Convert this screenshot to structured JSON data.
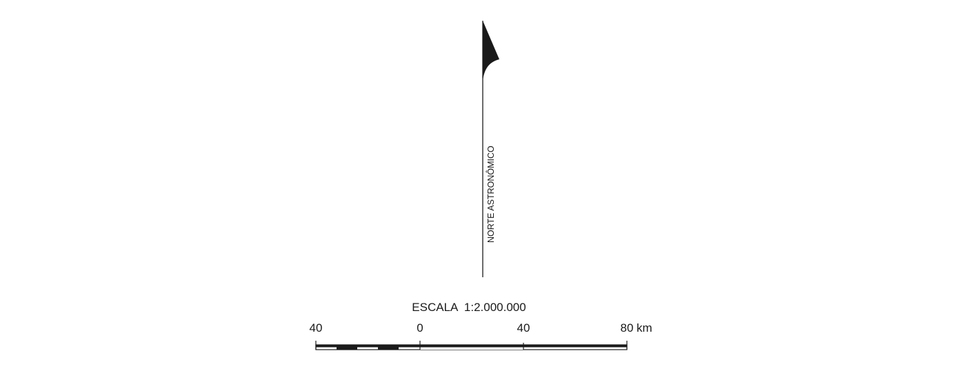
{
  "north_arrow": {
    "label": "NORTE ASTRONÔMICO",
    "color": "#1a1a1a"
  },
  "scale_bar": {
    "title": "ESCALA  1:2.000.000",
    "unit": "km",
    "tick_labels": [
      "40",
      "0",
      "40",
      "80"
    ],
    "unit_label": "km",
    "bar_color": "#1a1a1a"
  }
}
